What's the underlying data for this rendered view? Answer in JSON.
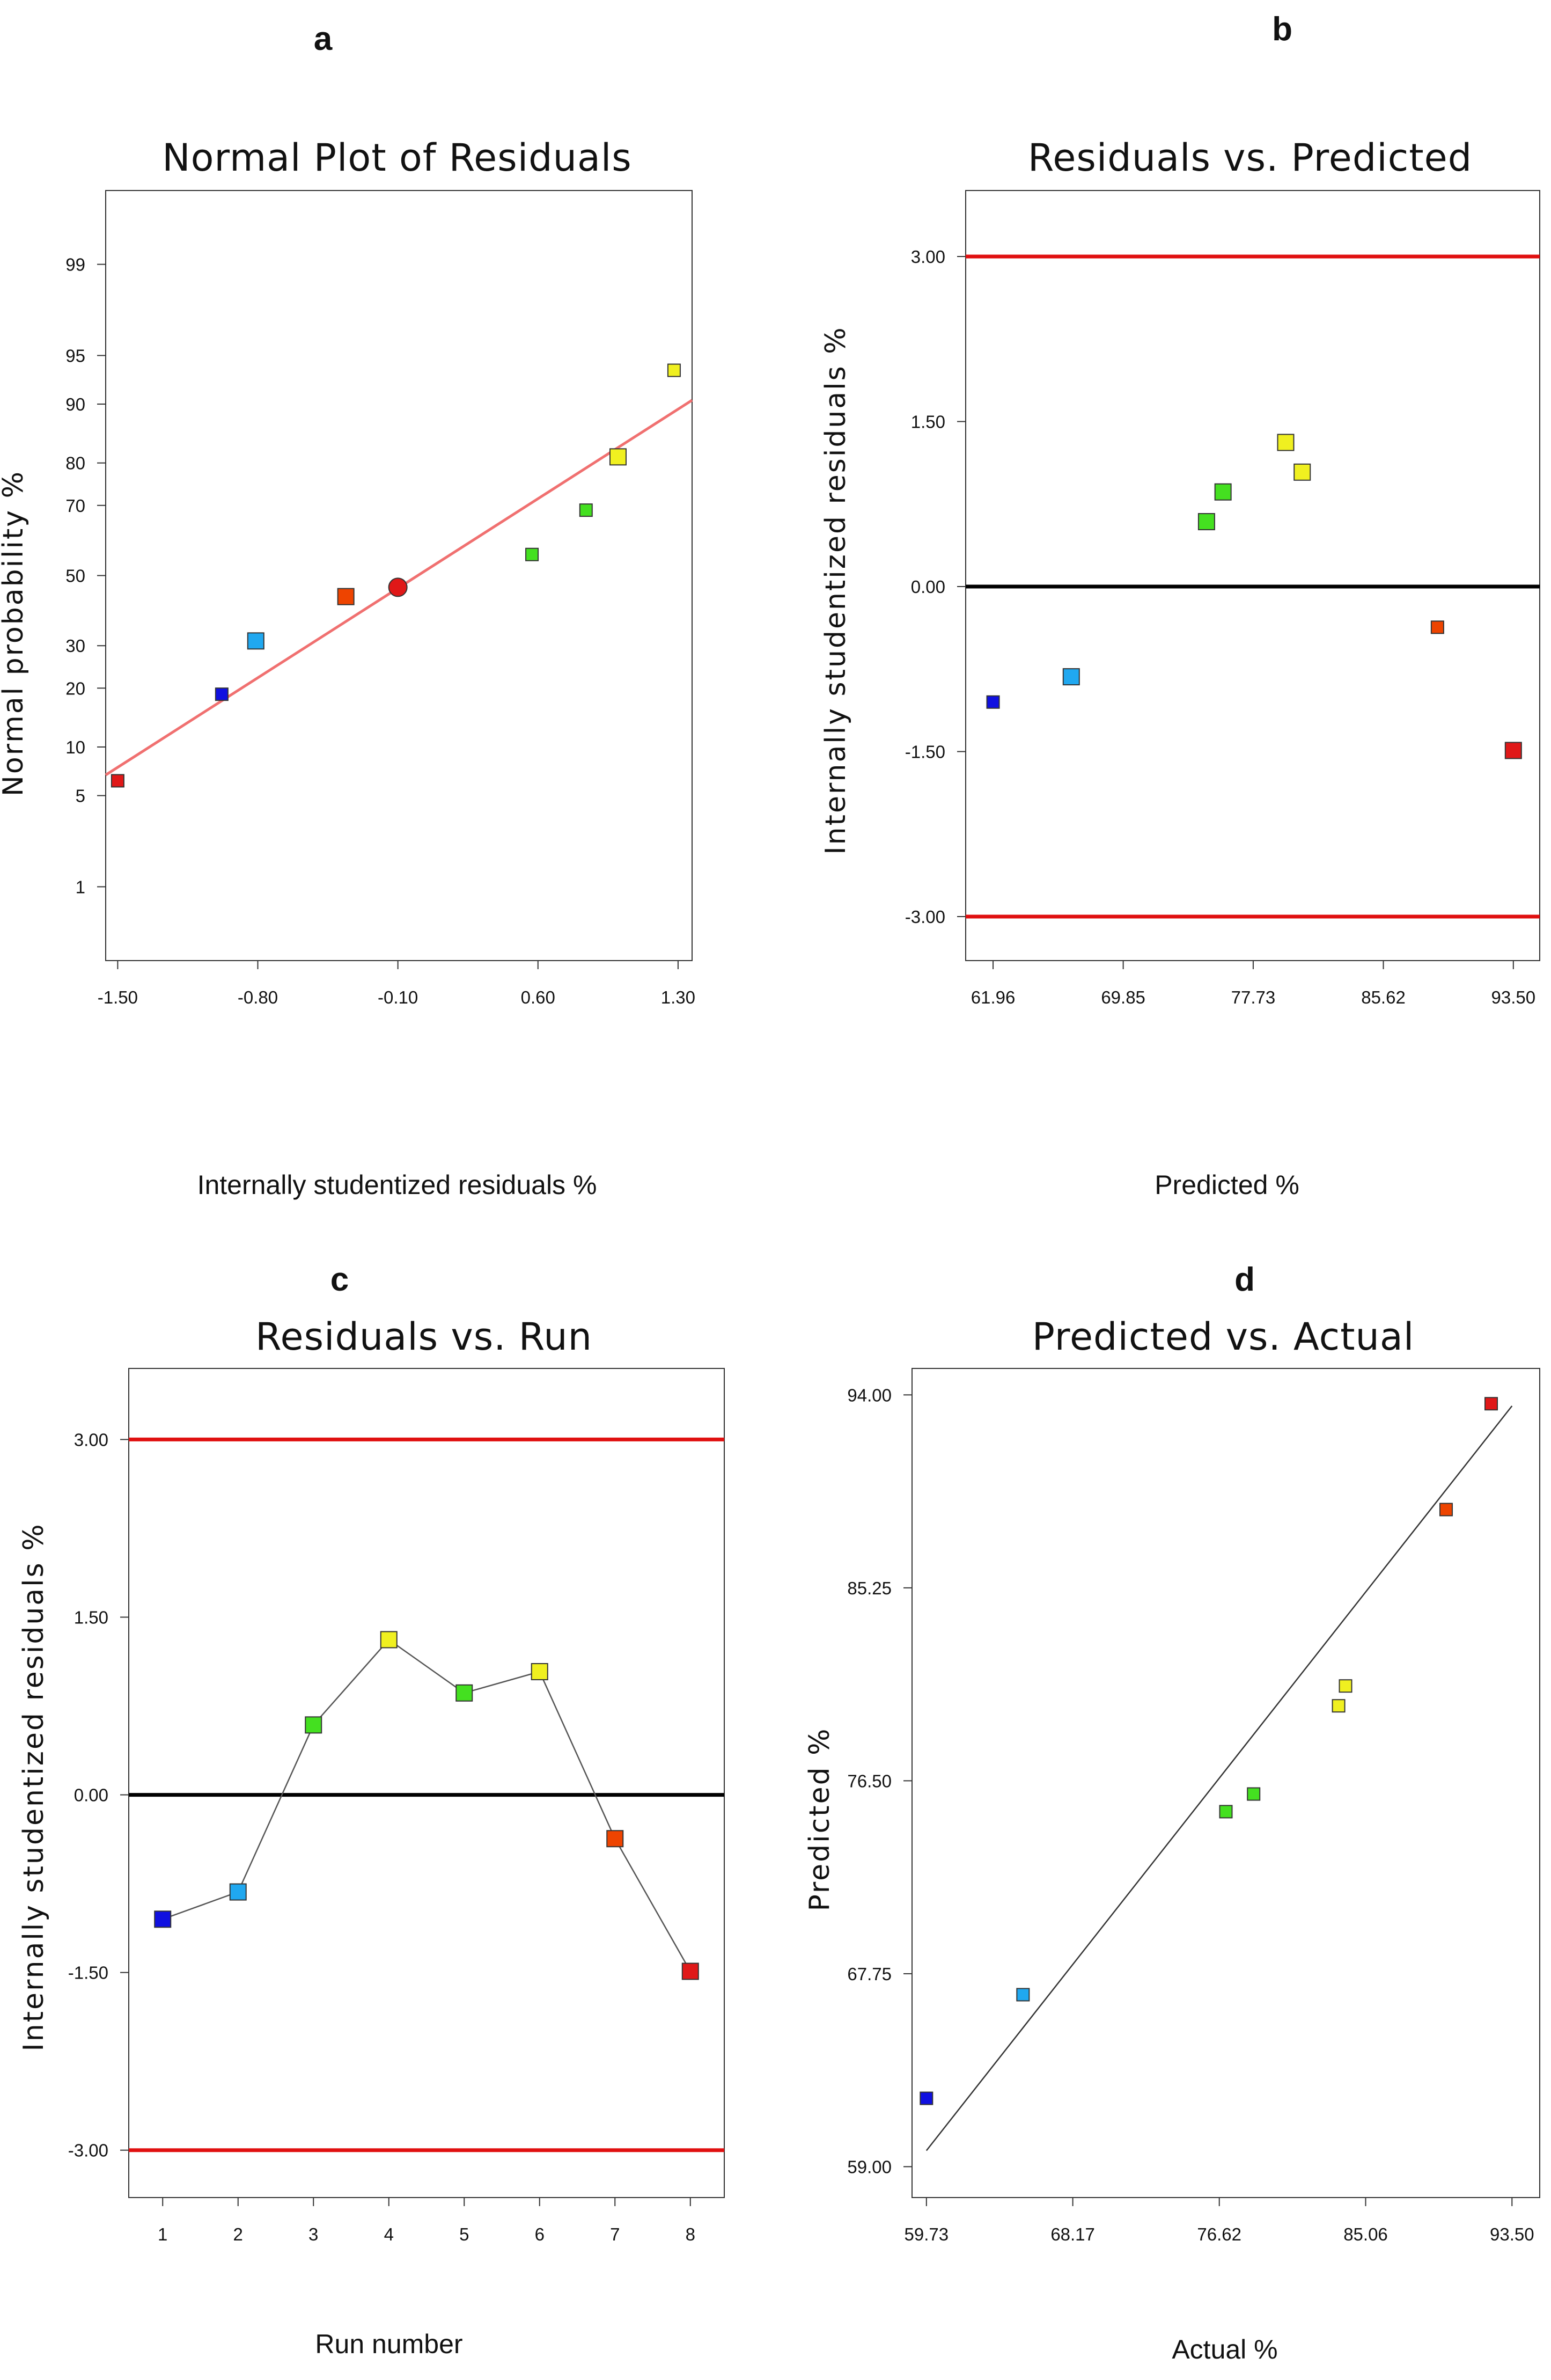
{
  "chart_data": [
    {
      "panel": "a",
      "type": "scatter",
      "title": "Normal Plot of Residuals",
      "xlabel": "Internally studentized residuals  %",
      "ylabel": "Normal probability %",
      "y_scale": "normal-probability",
      "xlim": [
        -1.56,
        1.37
      ],
      "ylim": [
        0.2,
        99.8
      ],
      "x_ticks": [
        -1.5,
        -0.8,
        -0.1,
        0.6,
        1.3
      ],
      "x_tick_labels": [
        "-1.50",
        "-0.80",
        "-0.10",
        "0.60",
        "1.30"
      ],
      "y_ticks": [
        1,
        5,
        10,
        20,
        30,
        50,
        70,
        80,
        90,
        95,
        99
      ],
      "y_tick_labels": [
        "1",
        "5",
        "10",
        "20",
        "30",
        "50",
        "70",
        "80",
        "90",
        "95",
        "99"
      ],
      "grid": false,
      "points": [
        {
          "x": -1.5,
          "y": 6.25,
          "color": "#e01818",
          "shape": "square",
          "size": "small"
        },
        {
          "x": -0.98,
          "y": 18.75,
          "color": "#1010e0",
          "shape": "square",
          "size": "small"
        },
        {
          "x": -0.81,
          "y": 31.25,
          "color": "#20a8f0",
          "shape": "square",
          "size": "large"
        },
        {
          "x": -0.36,
          "y": 43.75,
          "color": "#ee4400",
          "shape": "square",
          "size": "large"
        },
        {
          "x": -0.1,
          "y": 46.5,
          "color": "#e01818",
          "shape": "circle",
          "size": "large"
        },
        {
          "x": 0.57,
          "y": 56.25,
          "color": "#44e020",
          "shape": "square",
          "size": "small"
        },
        {
          "x": 0.84,
          "y": 68.75,
          "color": "#44e020",
          "shape": "square",
          "size": "small"
        },
        {
          "x": 1.0,
          "y": 81.25,
          "color": "#f0f020",
          "shape": "square",
          "size": "large"
        },
        {
          "x": 1.28,
          "y": 93.75,
          "color": "#f0f020",
          "shape": "square",
          "size": "small"
        }
      ],
      "reference_line": {
        "x": [
          -1.56,
          1.37
        ],
        "y": [
          6.8,
          90.5
        ],
        "color": "#f07070"
      }
    },
    {
      "panel": "b",
      "type": "scatter",
      "title": "Residuals vs. Predicted",
      "xlabel": "Predicted %",
      "ylabel": "Internally studentized residuals  %",
      "xlim": [
        60.3,
        95.1
      ],
      "ylim": [
        -3.4,
        3.6
      ],
      "x_ticks": [
        61.96,
        69.85,
        77.73,
        85.62,
        93.5
      ],
      "x_tick_labels": [
        "61.96",
        "69.85",
        "77.73",
        "85.62",
        "93.50"
      ],
      "y_ticks": [
        -3.0,
        -1.5,
        0.0,
        1.5,
        3.0
      ],
      "y_tick_labels": [
        "-3.00",
        "-1.50",
        "0.00",
        "1.50",
        "3.00"
      ],
      "grid": false,
      "hlines": [
        {
          "y": 3.0,
          "color": "#e01010"
        },
        {
          "y": 0.0,
          "color": "#000000"
        },
        {
          "y": -3.0,
          "color": "#e01010"
        }
      ],
      "points": [
        {
          "x": 61.96,
          "y": -1.05,
          "color": "#1010e0",
          "size": "small"
        },
        {
          "x": 66.7,
          "y": -0.82,
          "color": "#20a8f0",
          "size": "large"
        },
        {
          "x": 74.9,
          "y": 0.59,
          "color": "#44e020",
          "size": "large"
        },
        {
          "x": 75.9,
          "y": 0.86,
          "color": "#44e020",
          "size": "large"
        },
        {
          "x": 79.7,
          "y": 1.31,
          "color": "#f0f020",
          "size": "large"
        },
        {
          "x": 80.7,
          "y": 1.04,
          "color": "#f0f020",
          "size": "large"
        },
        {
          "x": 88.9,
          "y": -0.37,
          "color": "#ee4400",
          "size": "small"
        },
        {
          "x": 93.5,
          "y": -1.49,
          "color": "#e01818",
          "size": "large"
        }
      ]
    },
    {
      "panel": "c",
      "type": "line",
      "title": "Residuals vs. Run",
      "xlabel": "Run number",
      "ylabel": "Internally studentized residuals  %",
      "xlim": [
        0.55,
        8.45
      ],
      "ylim": [
        -3.4,
        3.6
      ],
      "x_ticks": [
        1,
        2,
        3,
        4,
        5,
        6,
        7,
        8
      ],
      "x_tick_labels": [
        "1",
        "2",
        "3",
        "4",
        "5",
        "6",
        "7",
        "8"
      ],
      "y_ticks": [
        -3.0,
        -1.5,
        0.0,
        1.5,
        3.0
      ],
      "y_tick_labels": [
        "-3.00",
        "-1.50",
        "0.00",
        "1.50",
        "3.00"
      ],
      "grid": false,
      "hlines": [
        {
          "y": 3.0,
          "color": "#e01010"
        },
        {
          "y": 0.0,
          "color": "#000000"
        },
        {
          "y": -3.0,
          "color": "#e01010"
        }
      ],
      "points": [
        {
          "x": 1,
          "y": -1.05,
          "color": "#1010e0",
          "size": "large"
        },
        {
          "x": 2,
          "y": -0.82,
          "color": "#20a8f0",
          "size": "large"
        },
        {
          "x": 3,
          "y": 0.59,
          "color": "#44e020",
          "size": "large"
        },
        {
          "x": 4,
          "y": 1.31,
          "color": "#f0f020",
          "size": "large"
        },
        {
          "x": 5,
          "y": 0.86,
          "color": "#44e020",
          "size": "large"
        },
        {
          "x": 6,
          "y": 1.04,
          "color": "#f0f020",
          "size": "large"
        },
        {
          "x": 7,
          "y": -0.37,
          "color": "#ee4400",
          "size": "large"
        },
        {
          "x": 8,
          "y": -1.49,
          "color": "#e01818",
          "size": "large"
        }
      ]
    },
    {
      "panel": "d",
      "type": "scatter",
      "title": "Predicted vs. Actual",
      "xlabel": "Actual %",
      "ylabel": "Predicted %",
      "xlim": [
        58.9,
        95.1
      ],
      "ylim": [
        57.6,
        95.2
      ],
      "x_ticks": [
        59.73,
        68.17,
        76.62,
        85.06,
        93.5
      ],
      "x_tick_labels": [
        "59.73",
        "68.17",
        "76.62",
        "85.06",
        "93.50"
      ],
      "y_ticks": [
        59.0,
        67.75,
        76.5,
        85.25,
        94.0
      ],
      "y_tick_labels": [
        "59.00",
        "67.75",
        "76.50",
        "85.25",
        "94.00"
      ],
      "grid": false,
      "points": [
        {
          "x": 59.73,
          "y": 62.1,
          "color": "#1010e0"
        },
        {
          "x": 65.3,
          "y": 66.8,
          "color": "#20a8f0"
        },
        {
          "x": 77.0,
          "y": 75.1,
          "color": "#44e020"
        },
        {
          "x": 78.6,
          "y": 75.9,
          "color": "#44e020"
        },
        {
          "x": 83.5,
          "y": 79.9,
          "color": "#f0f020"
        },
        {
          "x": 83.9,
          "y": 80.8,
          "color": "#f0f020"
        },
        {
          "x": 89.7,
          "y": 88.8,
          "color": "#ee4400"
        },
        {
          "x": 92.3,
          "y": 93.6,
          "color": "#e01818"
        }
      ],
      "reference_line": {
        "x": [
          59.73,
          93.5
        ],
        "y": [
          59.73,
          93.5
        ],
        "color": "#333333"
      }
    }
  ]
}
